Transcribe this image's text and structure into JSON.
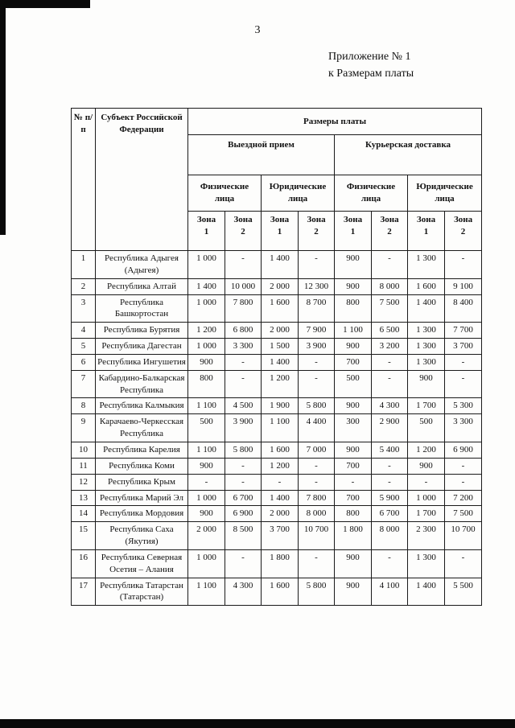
{
  "page": {
    "number": "3",
    "annex": {
      "line1": "Приложение № 1",
      "line2": "к Размерам платы"
    }
  },
  "table": {
    "header": {
      "col_num": "№ п/п",
      "col_subject": "Субъект Российской Федерации",
      "col_rates": "Размеры платы",
      "groups": [
        "Выездной прием",
        "Курьерская доставка"
      ],
      "person_types": [
        "Физические лица",
        "Юридические лица"
      ],
      "zones": [
        "Зона 1",
        "Зона 2"
      ]
    },
    "rows": [
      {
        "num": "1",
        "subject": "Республика Адыгея (Адыгея)",
        "values": [
          "1 000",
          "-",
          "1 400",
          "-",
          "900",
          "-",
          "1 300",
          "-"
        ]
      },
      {
        "num": "2",
        "subject": "Республика Алтай",
        "values": [
          "1 400",
          "10 000",
          "2 000",
          "12 300",
          "900",
          "8 000",
          "1 600",
          "9 100"
        ]
      },
      {
        "num": "3",
        "subject": "Республика Башкортостан",
        "values": [
          "1 000",
          "7 800",
          "1 600",
          "8 700",
          "800",
          "7 500",
          "1 400",
          "8 400"
        ]
      },
      {
        "num": "4",
        "subject": "Республика Бурятия",
        "values": [
          "1 200",
          "6 800",
          "2 000",
          "7 900",
          "1 100",
          "6 500",
          "1 300",
          "7 700"
        ]
      },
      {
        "num": "5",
        "subject": "Республика Дагестан",
        "values": [
          "1 000",
          "3 300",
          "1 500",
          "3 900",
          "900",
          "3 200",
          "1 300",
          "3 700"
        ]
      },
      {
        "num": "6",
        "subject": "Республика Ингушетия",
        "values": [
          "900",
          "-",
          "1 400",
          "-",
          "700",
          "-",
          "1 300",
          "-"
        ]
      },
      {
        "num": "7",
        "subject": "Кабардино-Балкарская Республика",
        "values": [
          "800",
          "-",
          "1 200",
          "-",
          "500",
          "-",
          "900",
          "-"
        ]
      },
      {
        "num": "8",
        "subject": "Республика Калмыкия",
        "values": [
          "1 100",
          "4 500",
          "1 900",
          "5 800",
          "900",
          "4 300",
          "1 700",
          "5 300"
        ]
      },
      {
        "num": "9",
        "subject": "Карачаево-Черкесская Республика",
        "values": [
          "500",
          "3 900",
          "1 100",
          "4 400",
          "300",
          "2 900",
          "500",
          "3 300"
        ]
      },
      {
        "num": "10",
        "subject": "Республика Карелия",
        "values": [
          "1 100",
          "5 800",
          "1 600",
          "7 000",
          "900",
          "5 400",
          "1 200",
          "6 900"
        ]
      },
      {
        "num": "11",
        "subject": "Республика Коми",
        "values": [
          "900",
          "-",
          "1 200",
          "-",
          "700",
          "-",
          "900",
          "-"
        ]
      },
      {
        "num": "12",
        "subject": "Республика Крым",
        "values": [
          "-",
          "-",
          "-",
          "-",
          "-",
          "-",
          "-",
          "-"
        ]
      },
      {
        "num": "13",
        "subject": "Республика Марий Эл",
        "values": [
          "1 000",
          "6 700",
          "1 400",
          "7 800",
          "700",
          "5 900",
          "1 000",
          "7 200"
        ]
      },
      {
        "num": "14",
        "subject": "Республика Мордовия",
        "values": [
          "900",
          "6 900",
          "2 000",
          "8 000",
          "800",
          "6 700",
          "1 700",
          "7 500"
        ]
      },
      {
        "num": "15",
        "subject": "Республика Саха (Якутия)",
        "values": [
          "2 000",
          "8 500",
          "3 700",
          "10 700",
          "1 800",
          "8 000",
          "2 300",
          "10 700"
        ]
      },
      {
        "num": "16",
        "subject": "Республика Северная Осетия – Алания",
        "values": [
          "1 000",
          "-",
          "1 800",
          "-",
          "900",
          "-",
          "1 300",
          "-"
        ]
      },
      {
        "num": "17",
        "subject": "Республика Татарстан (Татарстан)",
        "values": [
          "1 100",
          "4 300",
          "1 600",
          "5 800",
          "900",
          "4 100",
          "1 400",
          "5 500"
        ]
      }
    ]
  }
}
